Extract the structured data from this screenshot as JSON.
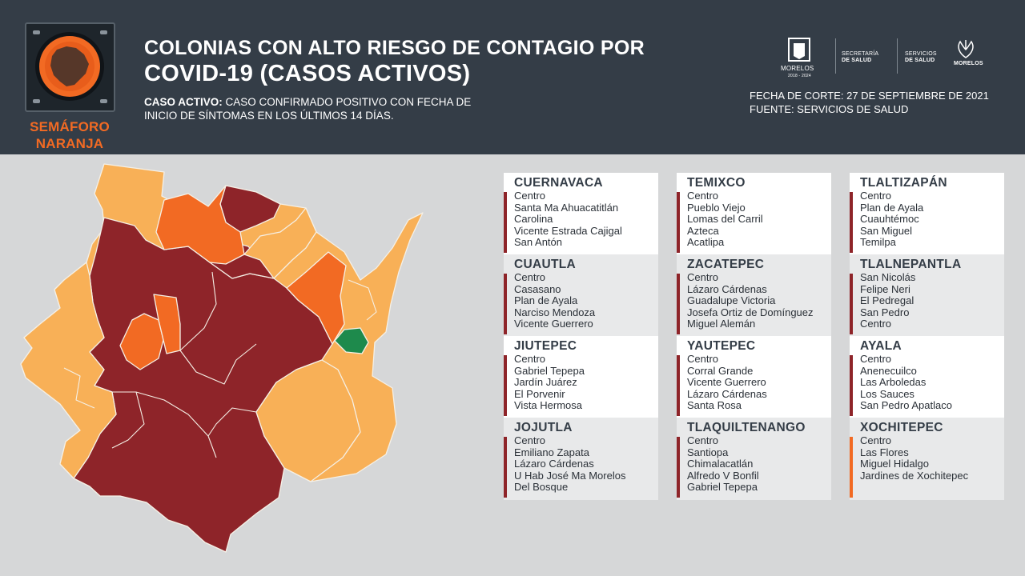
{
  "header": {
    "semaforo_label_line1": "SEMÁFORO",
    "semaforo_label_line2": "NARANJA",
    "title_line1": "COLONIAS CON ALTO RIESGO DE CONTAGIO POR",
    "title_line2": "COVID-19 (CASOS ACTIVOS)",
    "definition_label": "CASO ACTIVO:",
    "definition_text_line1": "CASO CONFIRMADO POSITIVO CON FECHA DE",
    "definition_text_line2": "INICIO DE SÍNTOMAS EN LOS ÚLTIMOS 14 DÍAS.",
    "fecha_corte": "FECHA DE CORTE: 27 DE SEPTIEMBRE DE 2021",
    "fuente": "FUENTE: SERVICIOS DE SALUD"
  },
  "logos": {
    "morelos": "MORELOS",
    "morelos_years": "2018 - 2024",
    "secretaria_line1": "SECRETARÍA",
    "secretaria_line2": "DE SALUD",
    "servicios_line1": "SERVICIOS",
    "servicios_line2": "DE SALUD",
    "morelos2": "MORELOS"
  },
  "colors": {
    "header_bg": "#343d47",
    "page_bg": "#d6d7d8",
    "red": "#8e2429",
    "orange": "#f26a23",
    "yellow": "#f8b057",
    "green": "#1e8a4c"
  },
  "municipalities": [
    {
      "name": "CUERNAVACA",
      "colonias": [
        "Centro",
        "Santa Ma Ahuacatitlán",
        "Carolina",
        "Vicente Estrada Cajigal",
        "San Antón"
      ],
      "risk": "red"
    },
    {
      "name": "TEMIXCO",
      "colonias": [
        "Centro",
        "Pueblo Viejo",
        "Lomas del Carril",
        "Azteca",
        "Acatlipa"
      ],
      "risk": "red"
    },
    {
      "name": "TLALTIZAPÁN",
      "colonias": [
        "Centro",
        "Plan de Ayala",
        "Cuauhtémoc",
        "San Miguel",
        "Temilpa"
      ],
      "risk": "red"
    },
    {
      "name": "CUAUTLA",
      "colonias": [
        "Centro",
        "Casasano",
        "Plan de Ayala",
        "Narciso Mendoza",
        "Vicente Guerrero"
      ],
      "risk": "red"
    },
    {
      "name": "ZACATEPEC",
      "colonias": [
        "Centro",
        "Lázaro Cárdenas",
        "Guadalupe Victoria",
        "Josefa Ortiz de Domínguez",
        "Miguel Alemán"
      ],
      "risk": "red"
    },
    {
      "name": "TLALNEPANTLA",
      "colonias": [
        "San Nicolás",
        "Felipe Neri",
        "El Pedregal",
        "San Pedro",
        "Centro"
      ],
      "risk": "red"
    },
    {
      "name": "JIUTEPEC",
      "colonias": [
        "Centro",
        "Gabriel Tepepa",
        "Jardín Juárez",
        "El Porvenir",
        "Vista Hermosa"
      ],
      "risk": "red"
    },
    {
      "name": "YAUTEPEC",
      "colonias": [
        "Centro",
        "Corral Grande",
        "Vicente Guerrero",
        "Lázaro Cárdenas",
        "Santa Rosa"
      ],
      "risk": "red"
    },
    {
      "name": "AYALA",
      "colonias": [
        "Centro",
        "Anenecuilco",
        "Las Arboledas",
        "Los Sauces",
        "San Pedro Apatlaco"
      ],
      "risk": "red"
    },
    {
      "name": "JOJUTLA",
      "colonias": [
        "Centro",
        "Emiliano Zapata",
        "Lázaro Cárdenas",
        "U Hab José Ma Morelos",
        "Del Bosque"
      ],
      "risk": "red"
    },
    {
      "name": "TLAQUILTENANGO",
      "colonias": [
        "Centro",
        "Santiopa",
        "Chimalacatlán",
        "Alfredo V Bonfil",
        "Gabriel Tepepa"
      ],
      "risk": "red"
    },
    {
      "name": "XOCHITEPEC",
      "colonias": [
        "Centro",
        "Las Flores",
        "Miguel Hidalgo",
        "Jardines de Xochitepec"
      ],
      "risk": "orange"
    }
  ]
}
